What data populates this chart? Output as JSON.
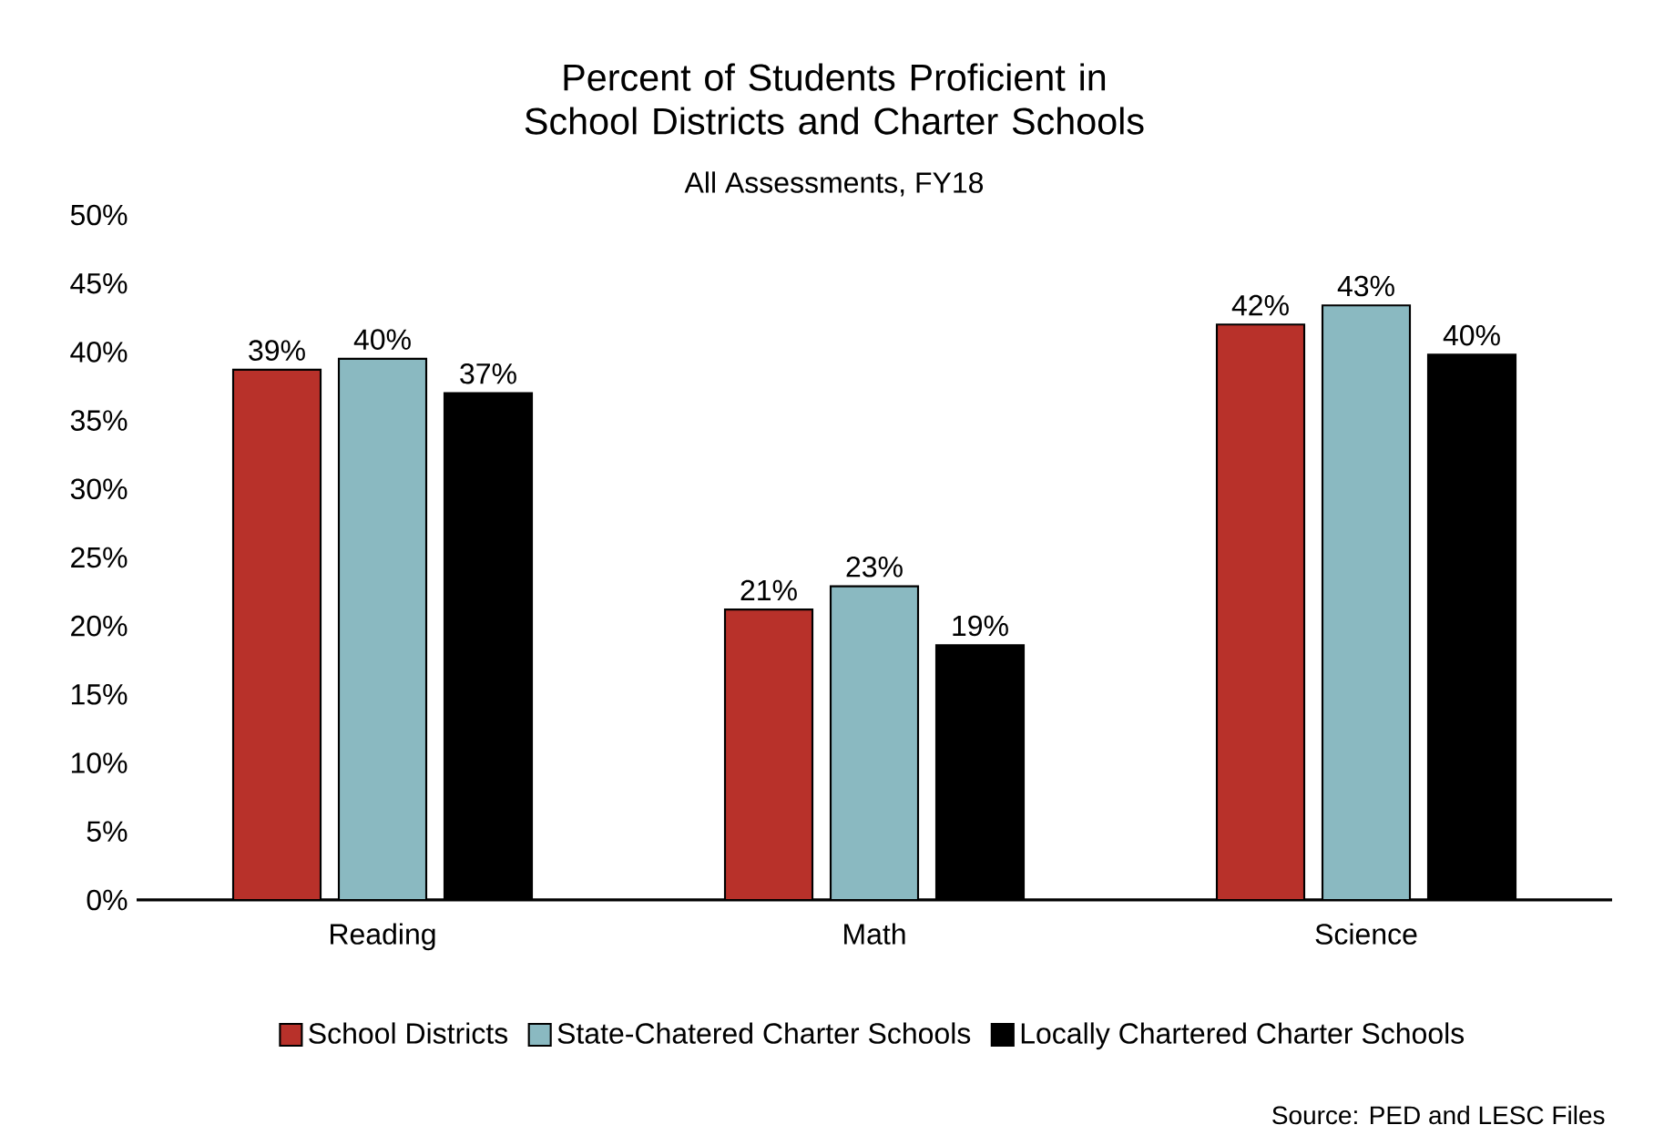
{
  "chart_data": {
    "type": "bar",
    "title": "Percent of Students Proficient in School Districts and Charter Schools",
    "subtitle": "All Assessments, FY18",
    "categories": [
      "Reading",
      "Math",
      "Science"
    ],
    "series": [
      {
        "name": "School Districts",
        "color": "#b8312a",
        "values": [
          38.7,
          21.2,
          42.0
        ],
        "value_labels": [
          "39%",
          "21%",
          "42%"
        ]
      },
      {
        "name": "State-Chatered Charter Schools",
        "color": "#8ab9c1",
        "values": [
          39.5,
          22.9,
          43.4
        ],
        "value_labels": [
          "40%",
          "23%",
          "43%"
        ]
      },
      {
        "name": "Locally Chartered Charter Schools",
        "color": "#000000",
        "values": [
          37.0,
          18.6,
          39.8
        ],
        "value_labels": [
          "37%",
          "19%",
          "40%"
        ]
      }
    ],
    "ylim": [
      0,
      50
    ],
    "yticks": [
      {
        "value": 0,
        "label": "0%"
      },
      {
        "value": 5,
        "label": "5%"
      },
      {
        "value": 10,
        "label": "10%"
      },
      {
        "value": 15,
        "label": "15%"
      },
      {
        "value": 20,
        "label": "20%"
      },
      {
        "value": 25,
        "label": "25%"
      },
      {
        "value": 30,
        "label": "30%"
      },
      {
        "value": 35,
        "label": "35%"
      },
      {
        "value": 40,
        "label": "40%"
      },
      {
        "value": 45,
        "label": "45%"
      },
      {
        "value": 50,
        "label": "50%"
      }
    ],
    "grid": false,
    "legend": "bottom",
    "annotations": [
      "Source: PED and LESC Files"
    ]
  }
}
